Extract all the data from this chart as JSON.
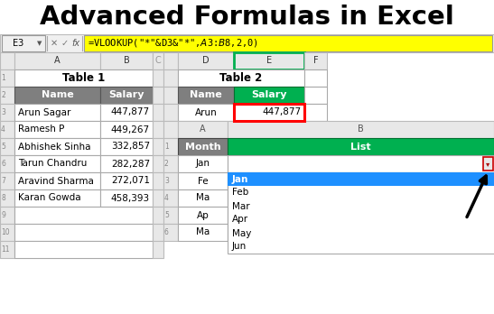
{
  "title": "Advanced Formulas in Excel",
  "title_fontsize": 22,
  "bg_color": "#ffffff",
  "formula_bar_cell": "E3",
  "formula_bar_text": "=VLOOKUP(\"*\"&D3&\"*\",$A$3:$B$8,2,0)",
  "formula_bar_bg": "#ffff00",
  "table1_title": "Table 1",
  "table1_header": [
    "Name",
    "Salary"
  ],
  "table1_header_bg": "#7f7f7f",
  "table1_header_color": "#ffffff",
  "table1_rows": [
    [
      "Arun Sagar",
      "447,877"
    ],
    [
      "Ramesh P",
      "449,267"
    ],
    [
      "Abhishek Sinha",
      "332,857"
    ],
    [
      "Tarun Chandru",
      "282,287"
    ],
    [
      "Aravind Sharma",
      "272,071"
    ],
    [
      "Karan Gowda",
      "458,393"
    ]
  ],
  "table2_title": "Table 2",
  "table2_header_name": "Name",
  "table2_header_salary": "Salary",
  "table2_header_name_bg": "#7f7f7f",
  "table2_header_salary_bg": "#00b050",
  "table2_header_color": "#ffffff",
  "table2_name": "Arun",
  "table2_salary": "447,877",
  "table2_salary_border": "#ff0000",
  "table3_header_month": "Month",
  "table3_header_list": "List",
  "table3_header_month_bg": "#7f7f7f",
  "table3_header_list_bg": "#00b050",
  "table3_header_color": "#ffffff",
  "table3_partial_months": [
    "Fe",
    "Ma",
    "Ap",
    "Ma"
  ],
  "dropdown_items": [
    "Jan",
    "Feb",
    "Mar",
    "Apr",
    "May",
    "Jun"
  ],
  "dropdown_selected": "Jan",
  "dropdown_selected_bg": "#1e90ff",
  "dropdown_selected_color": "#ffffff",
  "header_row_bg": "#e8e8e8",
  "cell_bg": "#ffffff",
  "grid_color": "#aaaaaa"
}
